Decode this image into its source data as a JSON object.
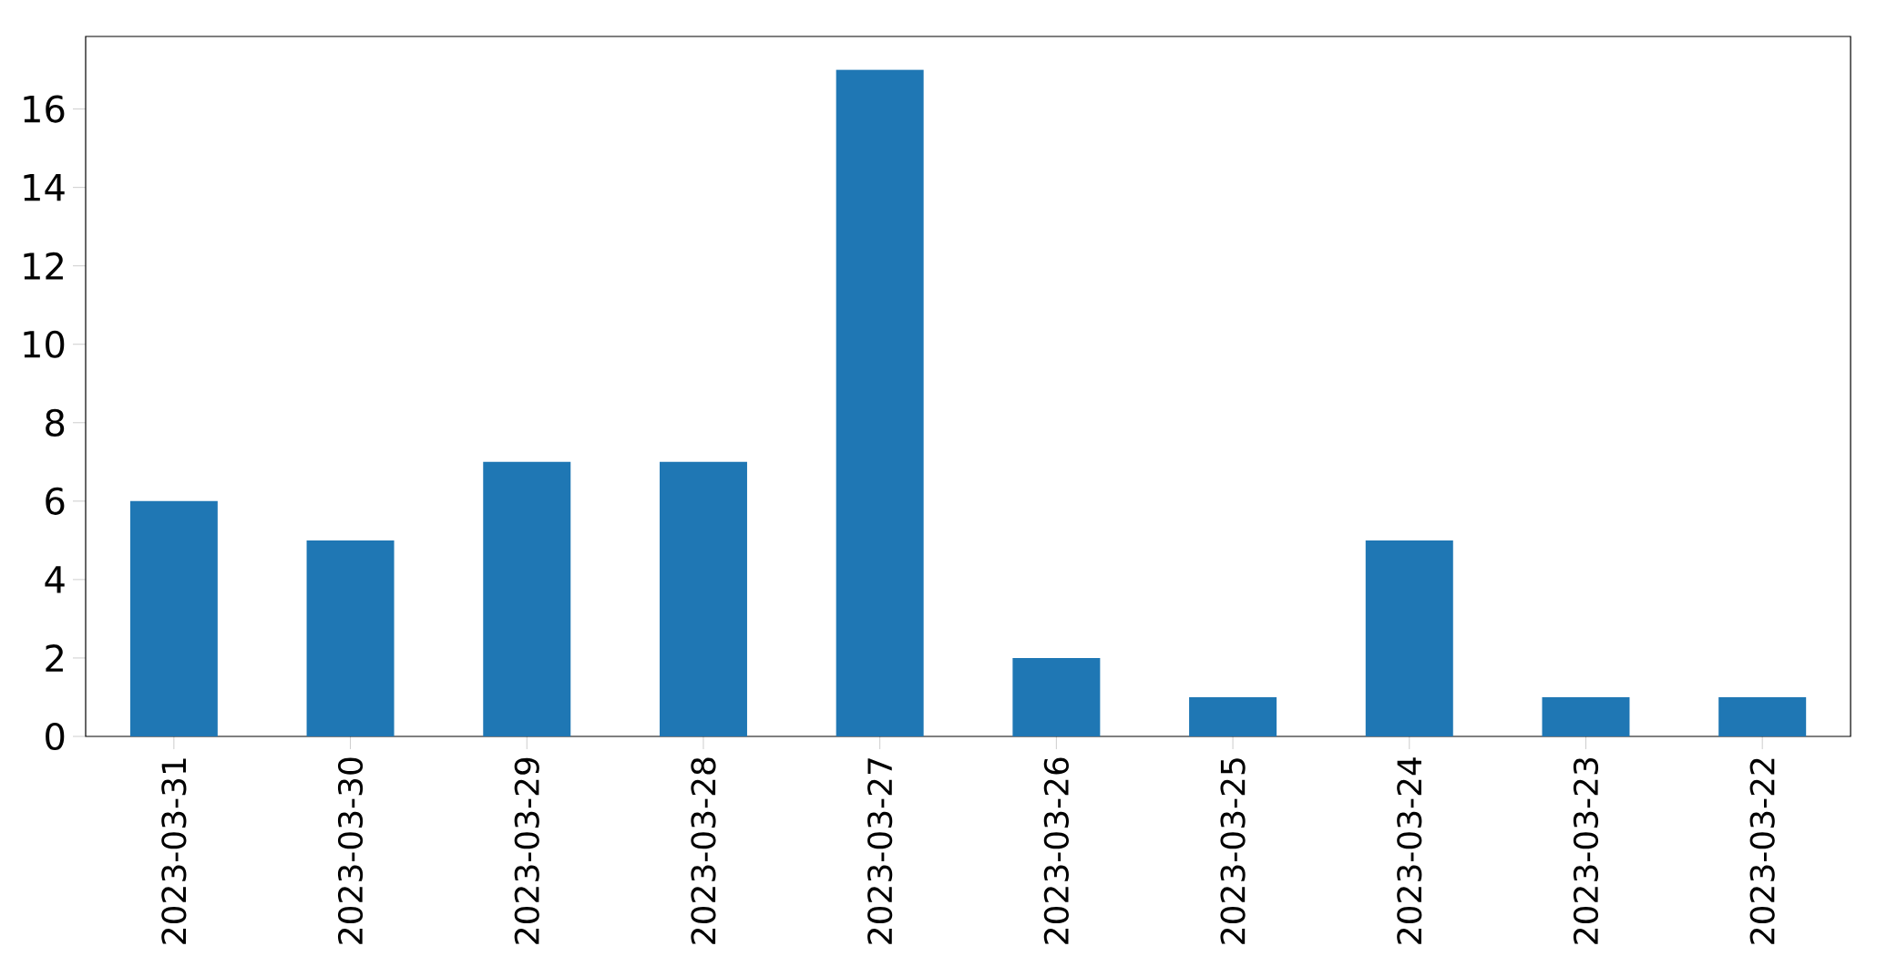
{
  "chart_data": {
    "type": "bar",
    "categories": [
      "2023-03-31",
      "2023-03-30",
      "2023-03-29",
      "2023-03-28",
      "2023-03-27",
      "2023-03-26",
      "2023-03-25",
      "2023-03-24",
      "2023-03-23",
      "2023-03-22"
    ],
    "values": [
      6,
      5,
      7,
      7,
      17,
      2,
      1,
      5,
      1,
      1
    ],
    "color": "#1f77b4",
    "ylim": [
      0,
      17.85
    ],
    "yticks": [
      0,
      2,
      4,
      6,
      8,
      10,
      12,
      14,
      16
    ],
    "grid": false
  }
}
